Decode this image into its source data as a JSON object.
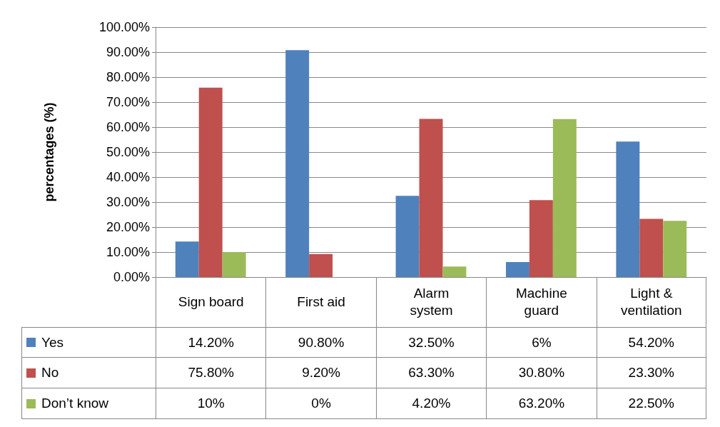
{
  "chart_data": {
    "type": "bar",
    "ylabel": "percentages (%)",
    "categories": [
      "Sign board",
      "First aid",
      "Alarm system",
      "Machine guard",
      "Light & ventilation"
    ],
    "series": [
      {
        "name": "Yes",
        "color": "#4f81bd",
        "values": [
          14.2,
          90.8,
          32.5,
          6,
          54.2
        ],
        "value_labels": [
          "14.20%",
          "90.80%",
          "32.50%",
          "6%",
          "54.20%"
        ]
      },
      {
        "name": "No",
        "color": "#c0504d",
        "values": [
          75.8,
          9.2,
          63.3,
          30.8,
          23.3
        ],
        "value_labels": [
          "75.80%",
          "9.20%",
          "63.30%",
          "30.80%",
          "23.30%"
        ]
      },
      {
        "name": "Don’t know",
        "color": "#9bbb59",
        "values": [
          10,
          0,
          4.2,
          63.2,
          22.5
        ],
        "value_labels": [
          "10%",
          "0%",
          "4.20%",
          "63.20%",
          "22.50%"
        ]
      }
    ],
    "ylim": [
      0,
      100
    ],
    "yticks": [
      {
        "value": 0,
        "label": "0.00%"
      },
      {
        "value": 10,
        "label": "10.00%"
      },
      {
        "value": 20,
        "label": "20.00%"
      },
      {
        "value": 30,
        "label": "30.00%"
      },
      {
        "value": 40,
        "label": "40.00%"
      },
      {
        "value": 50,
        "label": "50.00%"
      },
      {
        "value": 60,
        "label": "60.00%"
      },
      {
        "value": 70,
        "label": "70.00%"
      },
      {
        "value": 80,
        "label": "80.00%"
      },
      {
        "value": 90,
        "label": "90.00%"
      },
      {
        "value": 100,
        "label": "100.00%"
      }
    ],
    "grid": "y",
    "legend": "bottom"
  }
}
